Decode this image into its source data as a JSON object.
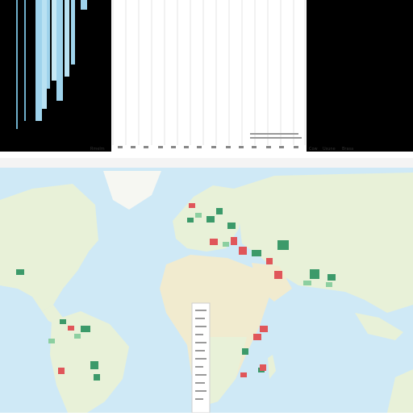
{
  "top_panel": {
    "left_label": "Rmelm",
    "right_labels": [
      "Cow",
      "Usune",
      "Brasa"
    ],
    "bar_colors": {
      "dark": "#000000",
      "light": "#9fd3ec",
      "paper": "#ffffff"
    }
  },
  "map": {
    "colors": {
      "ocean": "#cfe9f6",
      "land": "#e8f1d8",
      "desert": "#f1ebcf",
      "ice": "#f6f7f2",
      "marker_red": "#e0565a",
      "marker_green": "#3c9a6a",
      "marker_light": "#8ccfa0"
    },
    "legend_box": {
      "visible": true
    }
  }
}
